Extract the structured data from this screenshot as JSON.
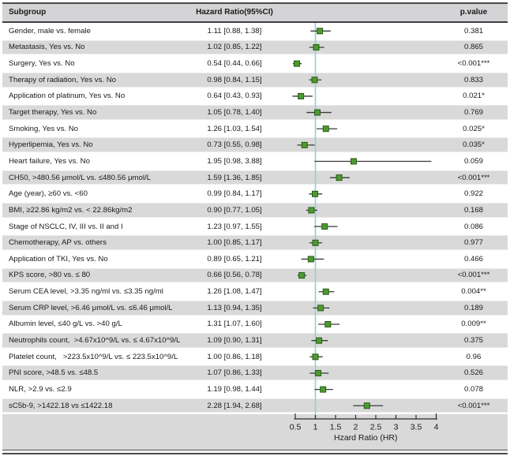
{
  "figure": {
    "header": {
      "subgroup": "Subgroup",
      "hazard_ratio": "Hazard Ratio(95%CI)",
      "p_value": "p.value"
    }
  },
  "chart_data": {
    "type": "scatter",
    "subtype": "forest-plot",
    "title": "",
    "xlabel": "Hzard Ratio (HR)",
    "x_ticks": [
      0.5,
      1,
      1.5,
      2,
      2.5,
      3,
      3.5,
      4
    ],
    "x_tick_labels": [
      "0.5",
      "1",
      "1.5",
      "2",
      "2.5",
      "3",
      "3.5",
      "4"
    ],
    "xlim": [
      0.4,
      4.05
    ],
    "reference_line_x": 1,
    "legend": "none",
    "grid": false,
    "colors": {
      "marker_fill": "#4e9b2f",
      "marker_border": "#245c14",
      "ci_line": "#3a3a3a",
      "reference_line": "#93cfd6",
      "stripe_bg": "#d9d9d9",
      "header_bg": "#d4d4d6",
      "rule": "#4a4a4c"
    },
    "rows": [
      {
        "subgroup": "Gender, male vs. female",
        "hr": 1.11,
        "ci_low": 0.88,
        "ci_high": 1.38,
        "hr_text": "1.11 [0.88, 1.38]",
        "p_value": "0.381"
      },
      {
        "subgroup": "Metastasis, Yes vs. No",
        "hr": 1.02,
        "ci_low": 0.85,
        "ci_high": 1.22,
        "hr_text": "1.02 [0.85, 1.22]",
        "p_value": "0.865"
      },
      {
        "subgroup": "Surgery, Yes vs. No",
        "hr": 0.54,
        "ci_low": 0.44,
        "ci_high": 0.66,
        "hr_text": "0.54 [0.44, 0.66]",
        "p_value": "<0.001***"
      },
      {
        "subgroup": "Therapy of radiation, Yes vs. No",
        "hr": 0.98,
        "ci_low": 0.84,
        "ci_high": 1.15,
        "hr_text": "0.98 [0.84, 1.15]",
        "p_value": "0.833"
      },
      {
        "subgroup": "Application of platinum, Yes vs. No",
        "hr": 0.64,
        "ci_low": 0.43,
        "ci_high": 0.93,
        "hr_text": "0.64 [0.43, 0.93]",
        "p_value": "0.021*"
      },
      {
        "subgroup": "Target therapy, Yes vs. No",
        "hr": 1.05,
        "ci_low": 0.78,
        "ci_high": 1.4,
        "hr_text": "1.05 [0.78, 1.40]",
        "p_value": "0.769"
      },
      {
        "subgroup": "Smoking, Yes vs. No",
        "hr": 1.26,
        "ci_low": 1.03,
        "ci_high": 1.54,
        "hr_text": "1.26 [1.03, 1.54]",
        "p_value": "0.025*"
      },
      {
        "subgroup": "Hyperlipemia, Yes vs. No",
        "hr": 0.73,
        "ci_low": 0.55,
        "ci_high": 0.98,
        "hr_text": "0.73 [0.55, 0.98]",
        "p_value": "0.035*"
      },
      {
        "subgroup": "Heart failure, Yes vs. No",
        "hr": 1.95,
        "ci_low": 0.98,
        "ci_high": 3.88,
        "hr_text": "1.95 [0.98, 3.88]",
        "p_value": "0.059"
      },
      {
        "subgroup": "CH50, >480.56 μmol/L vs. ≤480.56 μmol/L",
        "hr": 1.59,
        "ci_low": 1.36,
        "ci_high": 1.85,
        "hr_text": "1.59 [1.36, 1.85]",
        "p_value": "<0.001***"
      },
      {
        "subgroup": "Age (year), ≥60 vs. <60",
        "hr": 0.99,
        "ci_low": 0.84,
        "ci_high": 1.17,
        "hr_text": "0.99 [0.84, 1.17]",
        "p_value": "0.922"
      },
      {
        "subgroup": "BMI, ≥22.86 kg/m2 vs. < 22.86kg/m2",
        "hr": 0.9,
        "ci_low": 0.77,
        "ci_high": 1.05,
        "hr_text": "0.90 [0.77, 1.05]",
        "p_value": "0.168"
      },
      {
        "subgroup": "Stage of NSCLC, IV, III vs. II and I",
        "hr": 1.23,
        "ci_low": 0.97,
        "ci_high": 1.55,
        "hr_text": "1.23 [0.97, 1.55]",
        "p_value": "0.086"
      },
      {
        "subgroup": "Chemotherapy, AP vs. others",
        "hr": 1.0,
        "ci_low": 0.85,
        "ci_high": 1.17,
        "hr_text": "1.00 [0.85, 1.17]",
        "p_value": "0.977"
      },
      {
        "subgroup": "Application of TKI, Yes vs. No",
        "hr": 0.89,
        "ci_low": 0.65,
        "ci_high": 1.21,
        "hr_text": "0.89 [0.65, 1.21]",
        "p_value": "0.466"
      },
      {
        "subgroup": "KPS score, >80 vs. ≤ 80",
        "hr": 0.66,
        "ci_low": 0.56,
        "ci_high": 0.78,
        "hr_text": "0.66 [0.56, 0.78]",
        "p_value": "<0.001***"
      },
      {
        "subgroup": "Serum CEA level, >3.35 ng/ml vs. ≤3.35 ng/ml",
        "hr": 1.26,
        "ci_low": 1.08,
        "ci_high": 1.47,
        "hr_text": "1.26 [1.08, 1.47]",
        "p_value": "0.004**"
      },
      {
        "subgroup": "Serum CRP level, >6.46 μmol/L vs. ≤6.46 μmol/L",
        "hr": 1.13,
        "ci_low": 0.94,
        "ci_high": 1.35,
        "hr_text": "1.13 [0.94, 1.35]",
        "p_value": "0.189"
      },
      {
        "subgroup": "Albumin level, ≤40 g/L vs. >40 g/L",
        "hr": 1.31,
        "ci_low": 1.07,
        "ci_high": 1.6,
        "hr_text": "1.31 [1.07, 1.60]",
        "p_value": "0.009**"
      },
      {
        "subgroup": "Neutrophils count,  >4.67x10^9/L vs. ≤ 4.67x10^9/L",
        "hr": 1.09,
        "ci_low": 0.9,
        "ci_high": 1.31,
        "hr_text": "1.09 [0.90, 1.31]",
        "p_value": "0.375"
      },
      {
        "subgroup": "Platelet count,   >223.5x10^9/L vs. ≤ 223.5x10^9/L",
        "hr": 1.0,
        "ci_low": 0.86,
        "ci_high": 1.18,
        "hr_text": "1.00 [0.86, 1.18]",
        "p_value": "0.96"
      },
      {
        "subgroup": "PNI score, >48.5 vs. ≤48.5",
        "hr": 1.07,
        "ci_low": 0.86,
        "ci_high": 1.33,
        "hr_text": "1.07 [0.86, 1.33]",
        "p_value": "0.526"
      },
      {
        "subgroup": "NLR, >2.9 vs. ≤2.9",
        "hr": 1.19,
        "ci_low": 0.98,
        "ci_high": 1.44,
        "hr_text": "1.19 [0.98, 1.44]",
        "p_value": "0.078"
      },
      {
        "subgroup": "sC5b-9, >1422.18 vs ≤1422.18",
        "hr": 2.28,
        "ci_low": 1.94,
        "ci_high": 2.68,
        "hr_text": "2.28 [1.94, 2.68]",
        "p_value": "<0.001***"
      }
    ]
  }
}
